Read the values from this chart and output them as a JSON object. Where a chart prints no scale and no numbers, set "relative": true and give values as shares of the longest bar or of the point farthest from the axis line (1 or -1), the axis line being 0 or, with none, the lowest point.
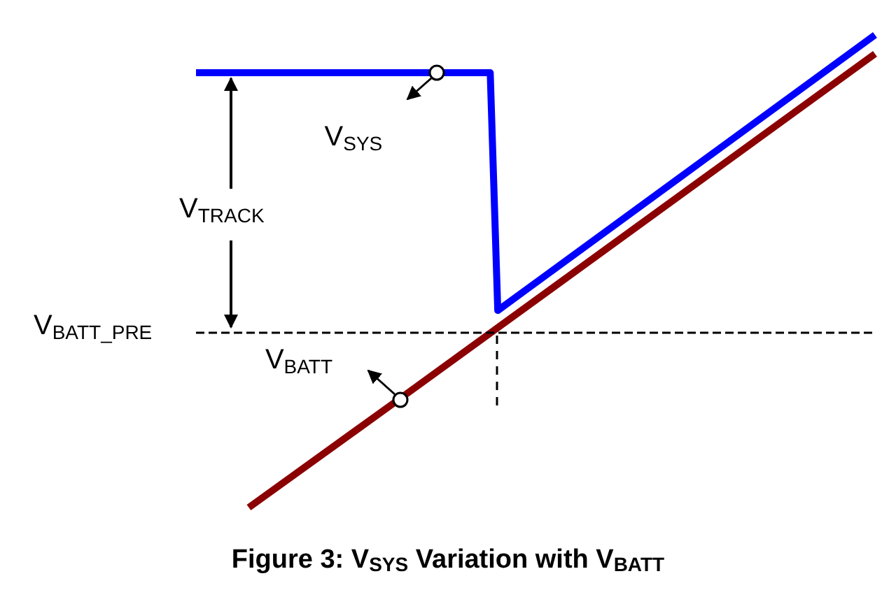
{
  "chart_data": {
    "type": "line",
    "relative": true,
    "title": "Figure 3: V$_{SYS}$ Variation with V$_{BATT}$",
    "legend": false,
    "grid": false,
    "marker": "none",
    "line_style": "solid",
    "categories": [
      null,
      null,
      null,
      null,
      null,
      null,
      null,
      null,
      null,
      null,
      null,
      null,
      null,
      null,
      null,
      null,
      null,
      null,
      null,
      null,
      null,
      null,
      null,
      null,
      null,
      null,
      null,
      null,
      null,
      null,
      null,
      null,
      null,
      null,
      null,
      null,
      null,
      null,
      null,
      null,
      null,
      null,
      null,
      null,
      null,
      null,
      null,
      null,
      null,
      null,
      null,
      null,
      null,
      null,
      null,
      null,
      null,
      null,
      null,
      null,
      null,
      null,
      null,
      null,
      null,
      null,
      null,
      null,
      null,
      null,
      null,
      null,
      null,
      null,
      null,
      null,
      null,
      null,
      null,
      null,
      null,
      null,
      null,
      null,
      null,
      null,
      null,
      null,
      null,
      null,
      null
    ],
    "series": [
      {
        "name": "V$_{SYS}$",
        "color": "#0000ff",
        "values": [
          0.92,
          null,
          null,
          null,
          null,
          null,
          null,
          null,
          null,
          null,
          null,
          null,
          null,
          null,
          null,
          null,
          null,
          null,
          null,
          null,
          null,
          null,
          null,
          null,
          null,
          null,
          null,
          null,
          null,
          null,
          null,
          null,
          0.92,
          null,
          null,
          null,
          null,
          null,
          null,
          0.92,
          0.417,
          null,
          null,
          null,
          null,
          null,
          null,
          null,
          null,
          null,
          null,
          null,
          null,
          null,
          null,
          null,
          null,
          null,
          null,
          null,
          null,
          null,
          null,
          null,
          null,
          null,
          null,
          null,
          null,
          null,
          null,
          null,
          null,
          null,
          null,
          null,
          null,
          null,
          null,
          null,
          null,
          null,
          null,
          null,
          null,
          null,
          null,
          null,
          null,
          null,
          1.0
        ]
      },
      {
        "name": "V$_{BATT}$",
        "color": "#8b0000",
        "values": [
          null,
          null,
          null,
          null,
          null,
          null,
          null,
          0,
          null,
          null,
          null,
          null,
          null,
          null,
          null,
          null,
          null,
          null,
          null,
          null,
          null,
          null,
          null,
          null,
          null,
          null,
          null,
          0.23,
          null,
          null,
          null,
          null,
          null,
          null,
          null,
          null,
          null,
          null,
          null,
          null,
          null,
          null,
          null,
          null,
          null,
          null,
          null,
          null,
          null,
          null,
          null,
          null,
          null,
          null,
          null,
          null,
          null,
          null,
          null,
          null,
          null,
          null,
          null,
          null,
          null,
          null,
          null,
          null,
          null,
          null,
          null,
          null,
          null,
          null,
          null,
          null,
          null,
          null,
          null,
          null,
          null,
          null,
          null,
          null,
          null,
          null,
          null,
          null,
          null,
          null,
          0.96
        ]
      }
    ],
    "ref_lines": [
      {
        "axis": "y",
        "value": 0.37,
        "label": "V$_{BATT_PRE}$",
        "line_style": "dashed",
        "color": "#000000"
      }
    ],
    "annotations": [
      "V$_{TRACK}$"
    ]
  }
}
